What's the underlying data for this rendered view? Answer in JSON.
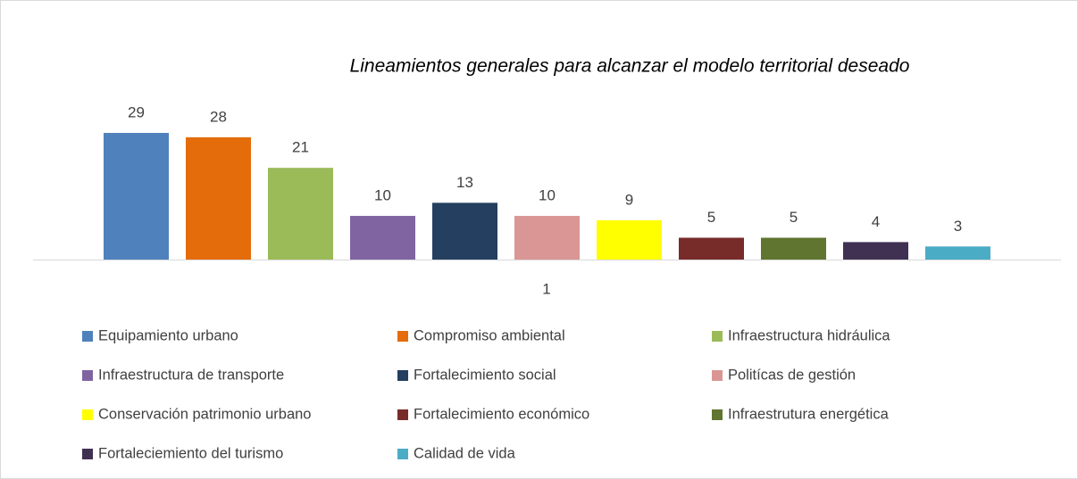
{
  "chart_data": {
    "type": "bar",
    "title": "Lineamientos generales para alcanzar el modelo territorial deseado",
    "categories": [
      "1"
    ],
    "series": [
      {
        "name": "Equipamiento urbano",
        "color": "#4f81bd",
        "values": [
          29
        ]
      },
      {
        "name": "Compromiso ambiental",
        "color": "#e46c0a",
        "values": [
          28
        ]
      },
      {
        "name": "Infraestructura hidráulica",
        "color": "#9bbb59",
        "values": [
          21
        ]
      },
      {
        "name": "Infraestructura de transporte",
        "color": "#8064a2",
        "values": [
          10
        ]
      },
      {
        "name": "Fortalecimiento social",
        "color": "#243f60",
        "values": [
          13
        ]
      },
      {
        "name": "Politícas de gestión",
        "color": "#d99694",
        "values": [
          10
        ]
      },
      {
        "name": "Conservación patrimonio urbano",
        "color": "#ffff00",
        "values": [
          9
        ]
      },
      {
        "name": "Fortalecimiento económico",
        "color": "#772c2a",
        "values": [
          5
        ]
      },
      {
        "name": "Infraestrutura energética",
        "color": "#5f7530",
        "values": [
          5
        ]
      },
      {
        "name": "Fortaleciemiento del turismo",
        "color": "#403152",
        "values": [
          4
        ]
      },
      {
        "name": "Calidad de vida",
        "color": "#4bacc6",
        "values": [
          3
        ]
      }
    ],
    "legend": "bottom"
  }
}
